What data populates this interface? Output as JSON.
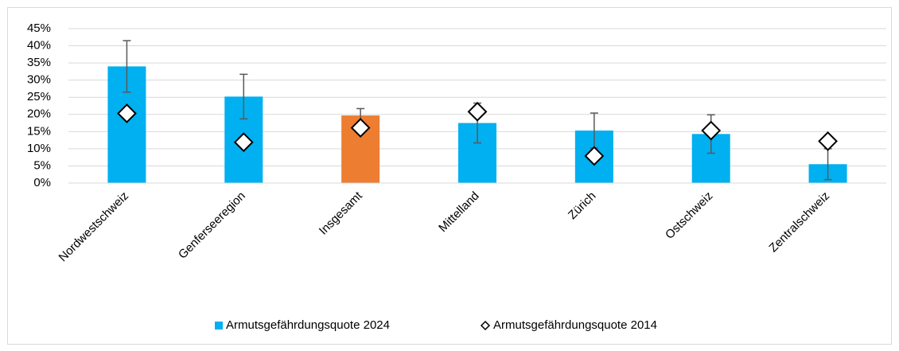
{
  "chart_data": {
    "type": "bar",
    "categories": [
      "Nordwestschweiz",
      "Genferseeregion",
      "Insgesamt",
      "Mittelland",
      "Zürich",
      "Ostschweiz",
      "Zentralschweiz"
    ],
    "series": [
      {
        "name": "Armutsgefährdungsquote 2024",
        "type": "bar",
        "color": "#00b0f0",
        "colors": [
          "#00b0f0",
          "#00b0f0",
          "#ed7d31",
          "#00b0f0",
          "#00b0f0",
          "#00b0f0",
          "#00b0f0"
        ],
        "values": [
          34,
          25.2,
          19.7,
          17.5,
          15.3,
          14.3,
          5.5
        ],
        "errors": [
          7.5,
          6.5,
          2,
          5.8,
          5.1,
          5.6,
          4.5
        ]
      },
      {
        "name": "Armutsgefährdungsquote 2014",
        "type": "marker",
        "color": "#ffffff",
        "values": [
          20.3,
          11.9,
          16.1,
          20.8,
          7.9,
          15.3,
          12.2
        ]
      }
    ],
    "ylim": [
      0,
      45
    ],
    "yticks": [
      {
        "value": 0,
        "label": "0%"
      },
      {
        "value": 5,
        "label": "5%"
      },
      {
        "value": 10,
        "label": "10%"
      },
      {
        "value": 15,
        "label": "15%"
      },
      {
        "value": 20,
        "label": "20%"
      },
      {
        "value": 25,
        "label": "25%"
      },
      {
        "value": 30,
        "label": "30%"
      },
      {
        "value": 35,
        "label": "35%"
      },
      {
        "value": 40,
        "label": "40%"
      },
      {
        "value": 45,
        "label": "45%"
      }
    ],
    "grid": true,
    "legend": "bottom"
  }
}
